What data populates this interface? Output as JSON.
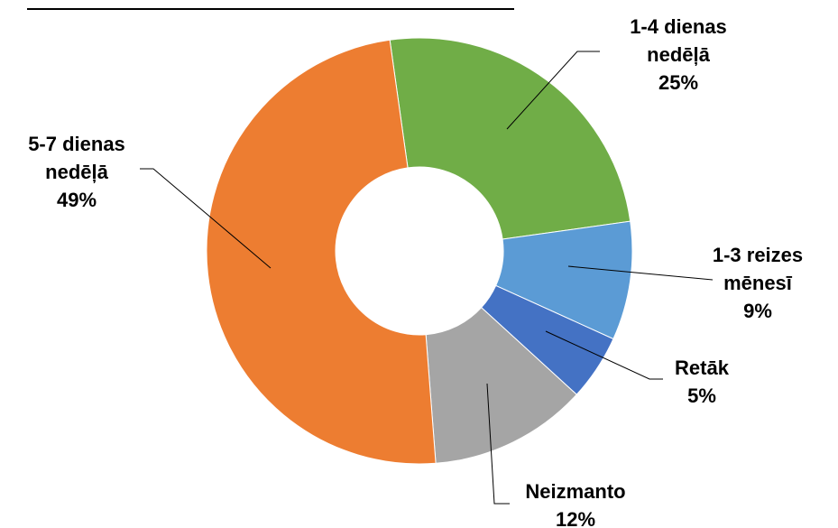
{
  "chart_data": {
    "type": "donut",
    "categories": [
      "1-4 dienas nedēļā",
      "1-3 reizes mēnesī",
      "Retāk",
      "Neizmanto",
      "5-7 dienas nedēļā"
    ],
    "values": [
      25,
      9,
      5,
      12,
      49
    ],
    "value_labels": [
      "25%",
      "9%",
      "5%",
      "12%",
      "49%"
    ],
    "colors": [
      "#70ad47",
      "#5b9bd5",
      "#4472c4",
      "#a5a5a5",
      "#ed7d31"
    ]
  }
}
